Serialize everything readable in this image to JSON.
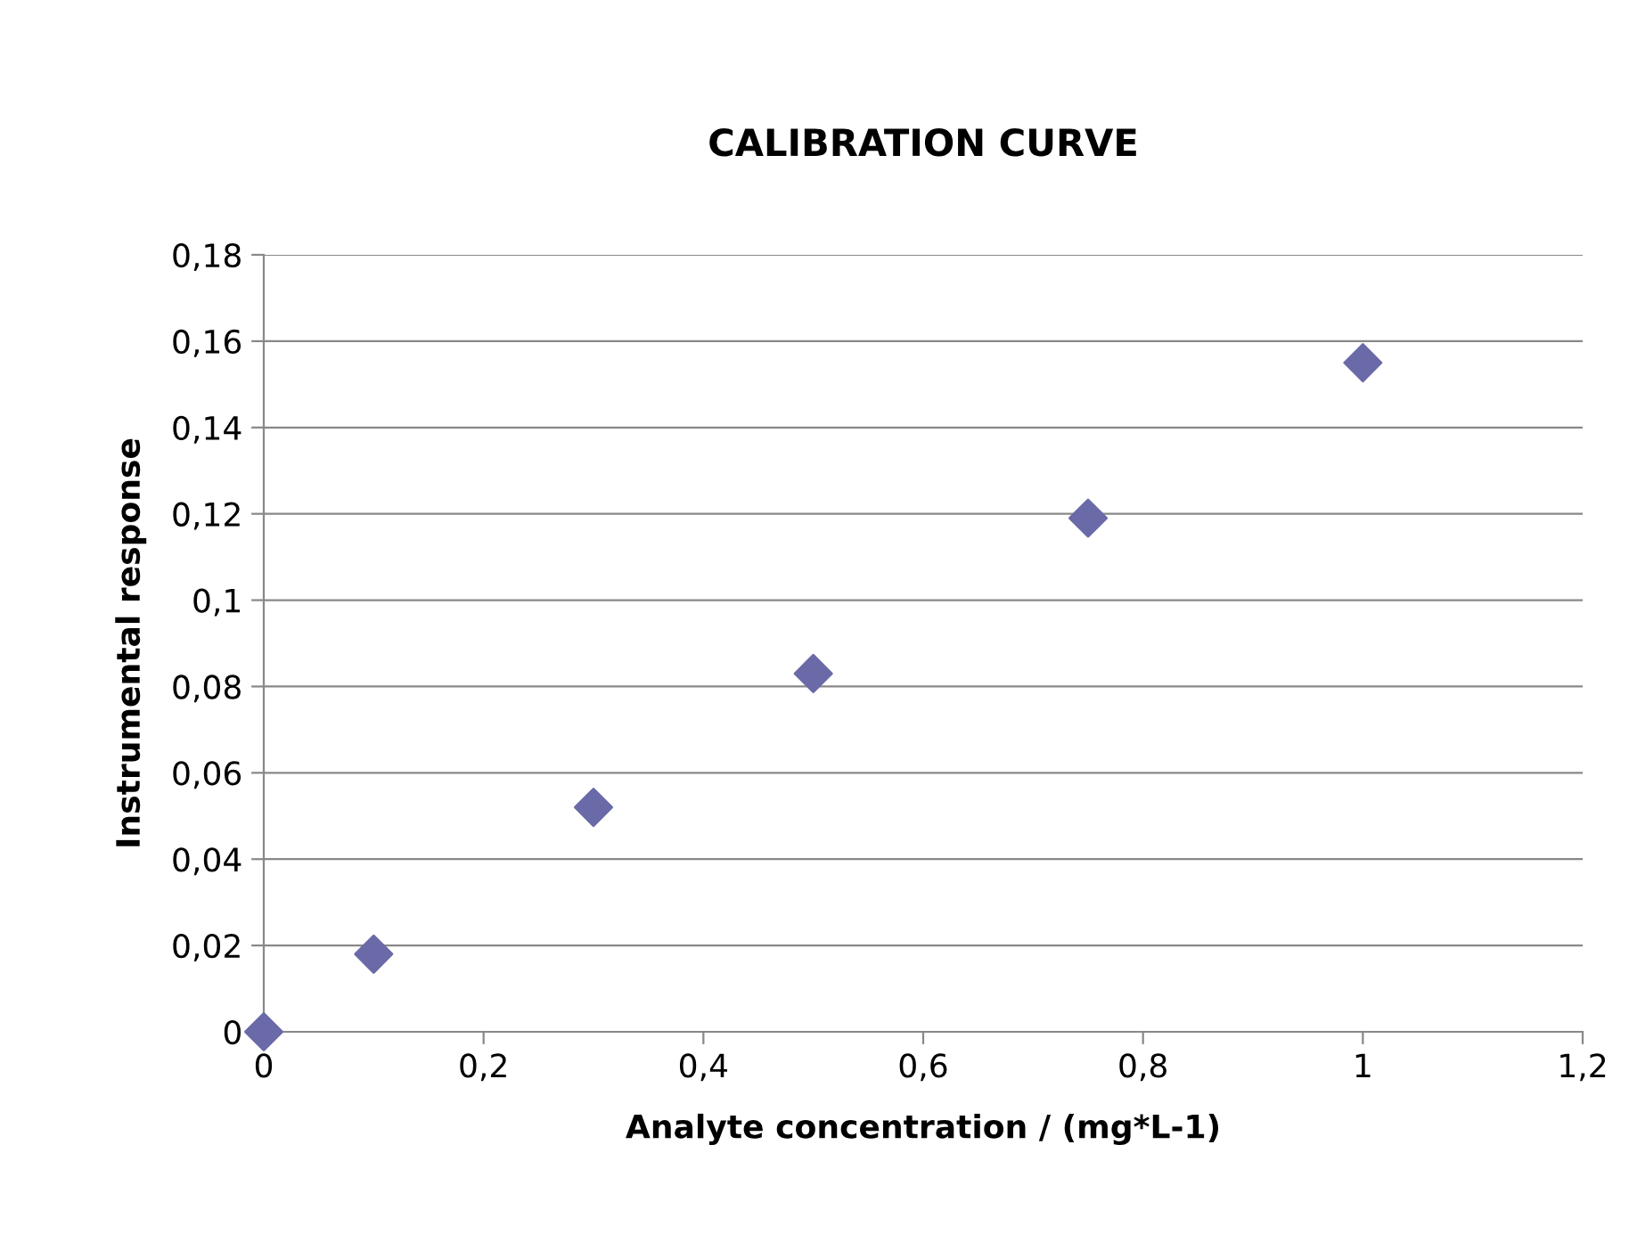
{
  "chart_data": {
    "type": "scatter",
    "title": "CALIBRATION CURVE",
    "xlabel": "Analyte concentration / (mg*L-1)",
    "ylabel": "Instrumental response",
    "x": [
      0,
      0.1,
      0.3,
      0.5,
      0.75,
      1
    ],
    "series": [
      {
        "color": "#6a6aa8",
        "values": [
          0,
          0.018,
          0.052,
          0.083,
          0.119,
          0.155
        ]
      }
    ],
    "xlim": [
      0,
      1.2
    ],
    "ylim": [
      0,
      0.18
    ],
    "xticks": [
      0,
      {
        "value": 0.2,
        "label": "0,2"
      },
      {
        "value": 0.4,
        "label": "0,4"
      },
      {
        "value": 0.6,
        "label": "0,6"
      },
      {
        "value": 0.8,
        "label": "0,8"
      },
      1,
      {
        "value": 1.2,
        "label": "1,2"
      }
    ],
    "yticks": [
      0,
      {
        "value": 0.02,
        "label": "0,02"
      },
      {
        "value": 0.04,
        "label": "0,04"
      },
      {
        "value": 0.06,
        "label": "0,06"
      },
      {
        "value": 0.08,
        "label": "0,08"
      },
      {
        "value": 0.1,
        "label": "0,1"
      },
      {
        "value": 0.12,
        "label": "0,12"
      },
      {
        "value": 0.14,
        "label": "0,14"
      },
      {
        "value": 0.16,
        "label": "0,16"
      },
      {
        "value": 0.18,
        "label": "0,18"
      }
    ],
    "grid": "y",
    "marker": "diamond",
    "legend": false
  }
}
